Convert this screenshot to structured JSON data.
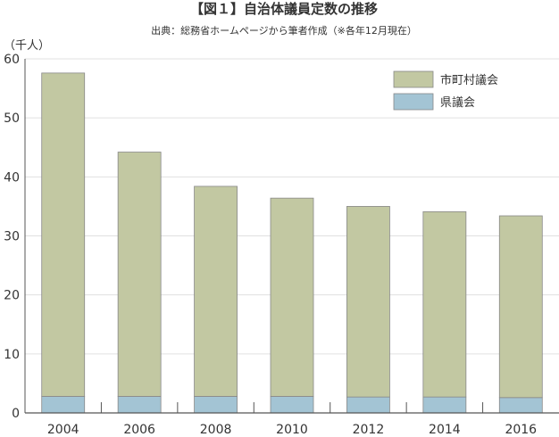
{
  "chart_data": {
    "type": "bar",
    "stacked": true,
    "title": "【図１】自治体議員定数の推移",
    "subtitle": "出典：総務省ホームページから筆者作成（※各年12月現在）",
    "ylabel": "（千人）",
    "xlabel": "",
    "ylim": [
      0,
      60
    ],
    "yticks": [
      0,
      10,
      20,
      30,
      40,
      50,
      60
    ],
    "grid": true,
    "legend_position": "top-right",
    "categories": [
      "2004",
      "2006",
      "2008",
      "2010",
      "2012",
      "2014",
      "2016"
    ],
    "series": [
      {
        "name": "県議会",
        "color": "#a3c4d4",
        "values": [
          2.8,
          2.8,
          2.8,
          2.8,
          2.7,
          2.7,
          2.6
        ]
      },
      {
        "name": "市町村議会",
        "color": "#c2c8a2",
        "values": [
          54.8,
          41.4,
          35.6,
          33.6,
          32.3,
          31.4,
          30.8
        ]
      }
    ],
    "legend_order": [
      "市町村議会",
      "県議会"
    ]
  },
  "colors": {
    "axis": "#555555",
    "grid": "#e0e0e0",
    "bar_stroke": "#888888"
  }
}
